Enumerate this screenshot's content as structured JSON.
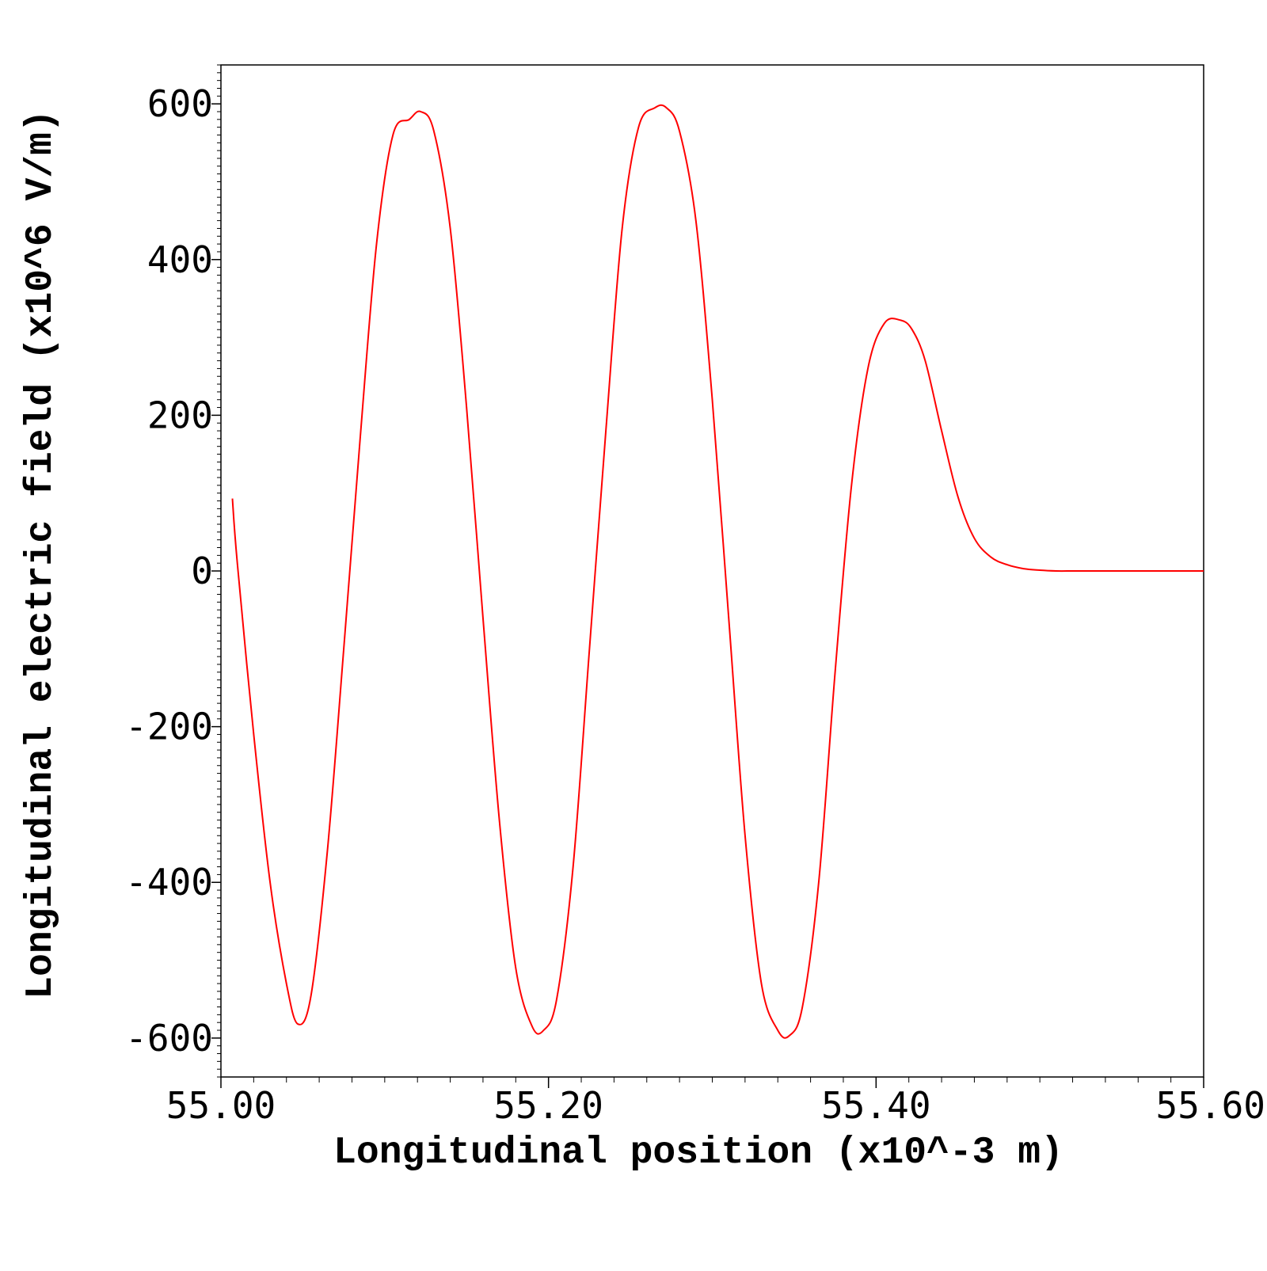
{
  "chart_data": {
    "type": "line",
    "title": "",
    "xlabel": "Longitudinal position (x10^-3 m)",
    "ylabel": "Longitudinal electric field (x10^6 V/m)",
    "xlim": [
      55.0,
      55.6
    ],
    "ylim": [
      -650,
      650
    ],
    "x_ticks": [
      55.0,
      55.2,
      55.4,
      55.6
    ],
    "x_tick_labels": [
      "55.00",
      "55.20",
      "55.40",
      "55.60"
    ],
    "y_ticks": [
      -600,
      -400,
      -200,
      0,
      200,
      400,
      600
    ],
    "y_tick_labels": [
      "-600",
      "-400",
      "-200",
      "0",
      "200",
      "400",
      "600"
    ],
    "grid": false,
    "legend": "none",
    "line_color": "#ff0000",
    "series": [
      {
        "color": "#ff0000",
        "x": [
          55.007,
          55.01,
          55.02,
          55.03,
          55.04,
          55.047,
          55.055,
          55.065,
          55.075,
          55.085,
          55.095,
          55.105,
          55.115,
          55.122,
          55.13,
          55.14,
          55.15,
          55.16,
          55.17,
          55.18,
          55.19,
          55.197,
          55.205,
          55.215,
          55.225,
          55.235,
          55.245,
          55.255,
          55.265,
          55.272,
          55.28,
          55.29,
          55.3,
          55.31,
          55.32,
          55.33,
          55.34,
          55.347,
          55.355,
          55.365,
          55.375,
          55.385,
          55.395,
          55.405,
          55.415,
          55.422,
          55.43,
          55.44,
          55.45,
          55.46,
          55.47,
          55.48,
          55.49,
          55.5,
          55.51,
          55.52,
          55.53,
          55.55,
          55.57,
          55.6
        ],
        "y": [
          93,
          10,
          -210,
          -400,
          -530,
          -582,
          -545,
          -360,
          -100,
          170,
          420,
          560,
          580,
          590,
          565,
          440,
          210,
          -60,
          -320,
          -510,
          -585,
          -590,
          -550,
          -380,
          -100,
          180,
          440,
          570,
          595,
          595,
          565,
          450,
          220,
          -60,
          -340,
          -530,
          -590,
          -597,
          -560,
          -400,
          -130,
          110,
          260,
          318,
          322,
          310,
          270,
          180,
          95,
          42,
          18,
          8,
          3,
          1,
          0,
          0,
          0,
          0,
          0,
          0
        ]
      }
    ]
  }
}
